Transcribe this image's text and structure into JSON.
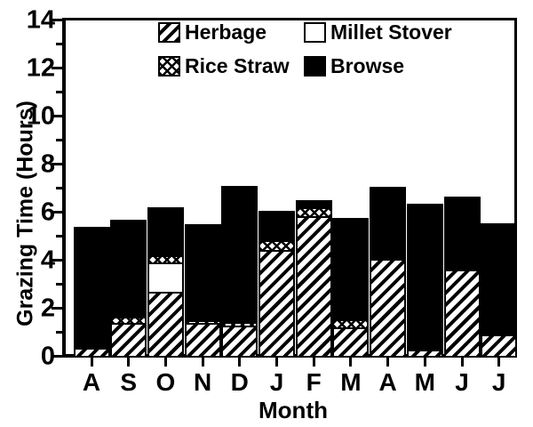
{
  "figure": {
    "background": "#ffffff",
    "ink_color": "#000000"
  },
  "y_axis": {
    "label": "Grazing Time (Hours)",
    "major_ticks": [
      0,
      2,
      4,
      6,
      8,
      10,
      12,
      14
    ],
    "minor_ticks": [
      1,
      3,
      5,
      7,
      9,
      11,
      13
    ],
    "min": 0,
    "max": 14
  },
  "x_axis": {
    "label": "Month",
    "categories": [
      "A",
      "S",
      "O",
      "N",
      "D",
      "J",
      "F",
      "M",
      "A",
      "M",
      "J",
      "J"
    ]
  },
  "legend": {
    "position": "top-inside",
    "items": [
      {
        "label": "Herbage",
        "pattern": "herbage",
        "swatch": "diagonal-hatch"
      },
      {
        "label": "Millet Stover",
        "pattern": "millet",
        "swatch": "white"
      },
      {
        "label": "Rice Straw",
        "pattern": "rice",
        "swatch": "crosshatch"
      },
      {
        "label": "Browse",
        "pattern": "browse",
        "swatch": "solid-black"
      }
    ]
  },
  "chart_data": {
    "type": "bar",
    "stacked": true,
    "title": "",
    "xlabel": "Month",
    "ylabel": "Grazing Time (Hours)",
    "ylim": [
      0,
      14
    ],
    "grid": false,
    "categories": [
      "A",
      "S",
      "O",
      "N",
      "D",
      "J",
      "F",
      "M",
      "A",
      "M",
      "J",
      "J"
    ],
    "series": [
      {
        "name": "Herbage",
        "pattern": "herbage",
        "values": [
          0.25,
          1.3,
          2.6,
          1.3,
          1.2,
          4.35,
          5.75,
          1.1,
          3.95,
          0.2,
          3.5,
          0.8
        ]
      },
      {
        "name": "Millet Stover",
        "pattern": "millet",
        "values": [
          0,
          0,
          1.2,
          0,
          0,
          0,
          0,
          0,
          0,
          0,
          0,
          0
        ]
      },
      {
        "name": "Rice Straw",
        "pattern": "rice",
        "values": [
          0,
          0.25,
          0.3,
          0.1,
          0.15,
          0.4,
          0.35,
          0.35,
          0,
          0,
          0,
          0.1
        ]
      },
      {
        "name": "Browse",
        "pattern": "browse",
        "values": [
          5.05,
          4.05,
          2.0,
          4.0,
          5.65,
          1.2,
          0.3,
          4.2,
          3.0,
          6.05,
          3.05,
          4.55
        ]
      }
    ],
    "totals": [
      5.3,
      5.6,
      6.1,
      5.4,
      7.0,
      5.95,
      6.4,
      5.65,
      6.95,
      6.25,
      6.55,
      5.45
    ]
  }
}
